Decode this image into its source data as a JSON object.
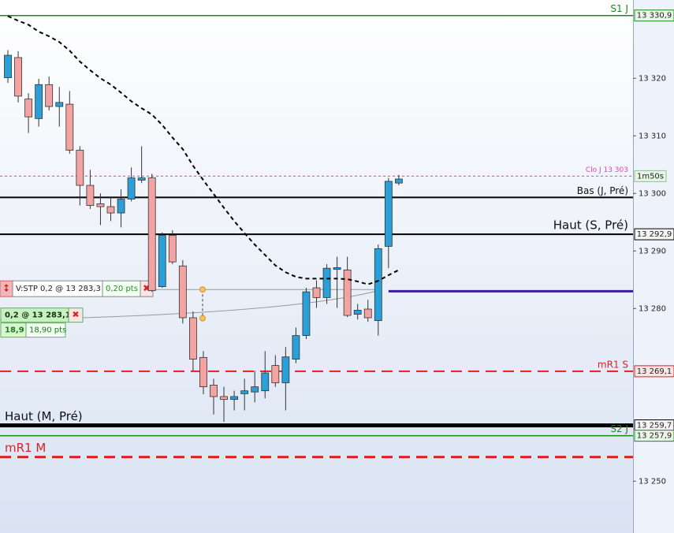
{
  "chart_data": {
    "type": "candlestick",
    "up_color": "#2b9fd8",
    "down_color": "#f4a3a3",
    "ylim": [
      13241,
      13333.6
    ],
    "yticks": [
      {
        "value": 13320,
        "label": "13 320"
      },
      {
        "value": 13310,
        "label": "13 310"
      },
      {
        "value": 13300,
        "label": "13 300"
      },
      {
        "value": 13290,
        "label": "13 290"
      },
      {
        "value": 13280,
        "label": "13 280"
      },
      {
        "value": 13250,
        "label": "13 250"
      }
    ],
    "open": [
      13320.1,
      13323.6,
      13316.4,
      13313.0,
      13318.9,
      13315.1,
      13315.5,
      13307.5,
      13301.4,
      13298.2,
      13297.7,
      13296.6,
      13299.0,
      13302.3,
      13302.7,
      13283.8,
      13292.7,
      13287.4,
      13278.4,
      13271.5,
      13266.7,
      13264.7,
      13264.2,
      13265.2,
      13265.5,
      13265.7,
      13270.1,
      13267.1,
      13271.2,
      13275.3,
      13283.6,
      13281.9,
      13286.8,
      13286.7,
      13279.0,
      13279.9,
      13277.9,
      13290.8,
      13301.8
    ],
    "high": [
      13324.9,
      13324.7,
      13317.4,
      13319.9,
      13320.3,
      13318.5,
      13317.8,
      13308.2,
      13304.1,
      13300.0,
      13299.3,
      13300.7,
      13304.5,
      13308.2,
      13303.4,
      13293.2,
      13293.6,
      13288.4,
      13279.5,
      13272.6,
      13267.8,
      13266.4,
      13265.7,
      13267.8,
      13269.2,
      13272.6,
      13271.9,
      13273.3,
      13276.7,
      13283.6,
      13284.9,
      13287.7,
      13289.0,
      13289.0,
      13280.8,
      13281.5,
      13291.1,
      13302.7,
      13303.2
    ],
    "low": [
      13319.2,
      13315.8,
      13310.5,
      13311.6,
      13314.4,
      13311.6,
      13306.9,
      13297.9,
      13297.3,
      13294.5,
      13295.2,
      13294.1,
      13298.6,
      13301.8,
      13282.9,
      13283.6,
      13287.7,
      13277.4,
      13269.2,
      13265.1,
      13261.6,
      13260.3,
      13262.3,
      13262.3,
      13263.7,
      13264.4,
      13266.4,
      13262.3,
      13270.5,
      13274.7,
      13280.1,
      13280.8,
      13280.1,
      13278.5,
      13278.1,
      13277.7,
      13275.3,
      13287.0,
      13301.4
    ],
    "close": [
      13324.0,
      13316.9,
      13313.3,
      13318.9,
      13315.1,
      13315.8,
      13307.5,
      13301.4,
      13297.9,
      13297.7,
      13296.6,
      13299.0,
      13302.7,
      13302.7,
      13283.1,
      13292.7,
      13288.1,
      13278.4,
      13271.2,
      13266.4,
      13264.7,
      13264.2,
      13264.7,
      13265.7,
      13266.4,
      13268.8,
      13267.1,
      13271.6,
      13275.3,
      13282.9,
      13281.9,
      13287.0,
      13287.1,
      13278.8,
      13279.7,
      13278.4,
      13290.4,
      13302.1,
      13302.5
    ],
    "moving_average": {
      "color": "#000000",
      "values": [
        13330.8,
        13330.0,
        13329.3,
        13328.1,
        13327.3,
        13326.3,
        13324.8,
        13322.9,
        13321.4,
        13320.0,
        13318.9,
        13317.5,
        13316.0,
        13314.8,
        13313.7,
        13311.9,
        13309.7,
        13307.7,
        13304.8,
        13302.3,
        13299.9,
        13297.5,
        13295.2,
        13293.1,
        13291.1,
        13289.3,
        13287.5,
        13286.3,
        13285.5,
        13285.2,
        13285.2,
        13285.2,
        13285.2,
        13285.1,
        13284.7,
        13284.2,
        13284.8,
        13285.8,
        13286.7
      ]
    },
    "levels": [
      {
        "label": "S1 J",
        "value": 13330.9,
        "value_label": "13 330,9",
        "color": "#1a8a1a",
        "style": "solid",
        "width": 1.5,
        "side": "right",
        "box_fill": "#e8f4e8"
      },
      {
        "label": "Clo J 13 303",
        "value": 13303,
        "color": "#e040c0",
        "style": "dotted",
        "width": 1,
        "side": "right",
        "small": true
      },
      {
        "label": "Bas (J, Pré)",
        "value": 13299.3,
        "color": "#000000",
        "style": "solid",
        "width": 2,
        "side": "right"
      },
      {
        "label": "Haut (S, Pré)",
        "value": 13292.9,
        "value_label": "13 292,9",
        "color": "#000000",
        "style": "solid",
        "width": 2,
        "side": "right",
        "big": true,
        "box_fill": "#f4f4f4"
      },
      {
        "value": 13283.0,
        "color": "#3b1ca0",
        "style": "solid",
        "width": 3,
        "start_candle": 37
      },
      {
        "label": "mR1 S",
        "value": 13269.1,
        "value_label": "13 269,1",
        "color": "#e02020",
        "style": "dashed",
        "width": 2,
        "side": "right",
        "box_fill": "#fbe4e4"
      },
      {
        "label": "Haut (M, Pré)",
        "value": 13259.7,
        "value_label": "13 259,7",
        "color": "#000000",
        "style": "solid",
        "width": 5,
        "side": "left",
        "big": true,
        "box_fill": "#f4f4f4"
      },
      {
        "label": "S2 J",
        "value": 13257.9,
        "value_label": "13 257,9",
        "color": "#1a8a1a",
        "style": "solid",
        "width": 1.5,
        "side": "right",
        "box_fill": "#e8f4e8"
      },
      {
        "label": "mR1 M",
        "value": 13254.2,
        "color": "#e02020",
        "style": "dashed",
        "width": 3,
        "side": "left",
        "big": true
      }
    ],
    "countdown": "1m50s",
    "orders": [
      {
        "label": "V:STP 0,2 @ 13 283,3",
        "points": "0,20 pts",
        "price": 13283.3
      },
      {
        "label": "0,2 @ 13 283,1",
        "result": "18,9",
        "points": "18,90 pts",
        "price": 13283.1
      }
    ]
  }
}
